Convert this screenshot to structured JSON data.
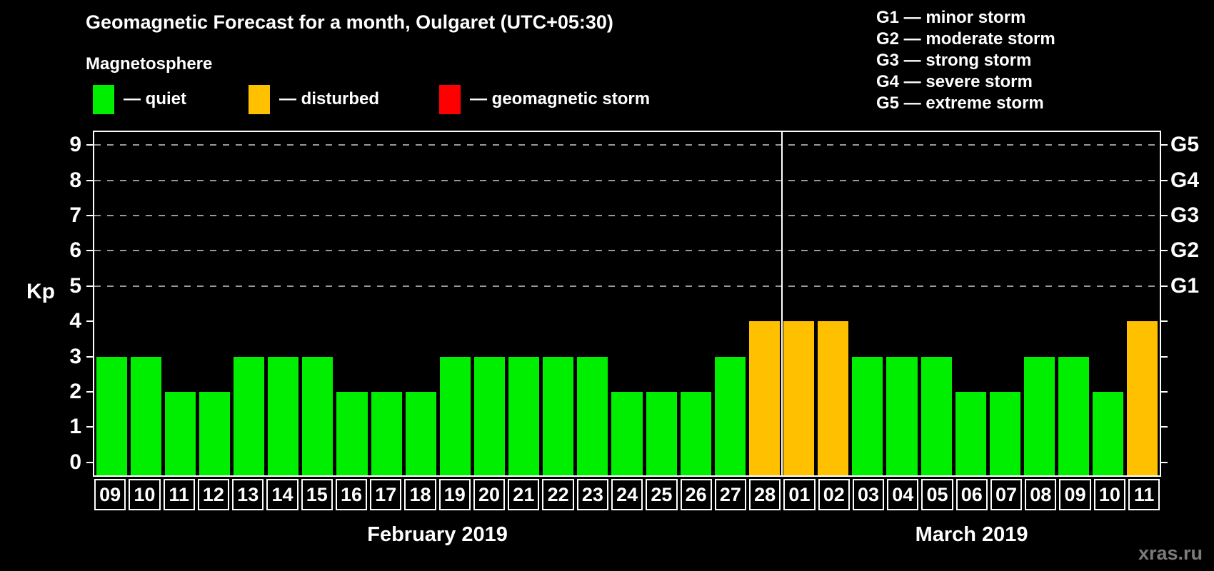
{
  "title": "Geomagnetic Forecast for a month, Oulgaret (UTC+05:30)",
  "subtitle": "Magnetosphere",
  "legend": {
    "items": [
      {
        "name": "quiet",
        "label": "— quiet",
        "color": "#00EE00"
      },
      {
        "name": "disturbed",
        "label": "— disturbed",
        "color": "#FFC000"
      },
      {
        "name": "storm",
        "label": "— geomagnetic storm",
        "color": "#FF0000"
      }
    ]
  },
  "g_legend": [
    "G1 — minor storm",
    "G2 — moderate storm",
    "G3 — strong storm",
    "G4 — severe storm",
    "G5 — extreme storm"
  ],
  "watermark": "xras.ru",
  "chart_data": {
    "type": "bar",
    "ylabel": "Kp",
    "y_ticks": [
      0,
      1,
      2,
      3,
      4,
      5,
      6,
      7,
      8,
      9
    ],
    "y_range": [
      -0.37,
      9.37
    ],
    "gridlines_at": [
      5,
      6,
      7,
      8,
      9
    ],
    "grid_color": "#999999",
    "frame_color": "#ffffff",
    "right_axis_labels": [
      {
        "kp": 5,
        "label": "G1"
      },
      {
        "kp": 6,
        "label": "G2"
      },
      {
        "kp": 7,
        "label": "G3"
      },
      {
        "kp": 8,
        "label": "G4"
      },
      {
        "kp": 9,
        "label": "G5"
      }
    ],
    "status_colors": {
      "quiet": "#00EE00",
      "disturbed": "#FFC000",
      "storm": "#FF0000"
    },
    "months": [
      {
        "label": "February 2019",
        "days": [
          {
            "date": "09",
            "kp": 3,
            "status": "quiet"
          },
          {
            "date": "10",
            "kp": 3,
            "status": "quiet"
          },
          {
            "date": "11",
            "kp": 2,
            "status": "quiet"
          },
          {
            "date": "12",
            "kp": 2,
            "status": "quiet"
          },
          {
            "date": "13",
            "kp": 3,
            "status": "quiet"
          },
          {
            "date": "14",
            "kp": 3,
            "status": "quiet"
          },
          {
            "date": "15",
            "kp": 3,
            "status": "quiet"
          },
          {
            "date": "16",
            "kp": 2,
            "status": "quiet"
          },
          {
            "date": "17",
            "kp": 2,
            "status": "quiet"
          },
          {
            "date": "18",
            "kp": 2,
            "status": "quiet"
          },
          {
            "date": "19",
            "kp": 3,
            "status": "quiet"
          },
          {
            "date": "20",
            "kp": 3,
            "status": "quiet"
          },
          {
            "date": "21",
            "kp": 3,
            "status": "quiet"
          },
          {
            "date": "22",
            "kp": 3,
            "status": "quiet"
          },
          {
            "date": "23",
            "kp": 3,
            "status": "quiet"
          },
          {
            "date": "24",
            "kp": 2,
            "status": "quiet"
          },
          {
            "date": "25",
            "kp": 2,
            "status": "quiet"
          },
          {
            "date": "26",
            "kp": 2,
            "status": "quiet"
          },
          {
            "date": "27",
            "kp": 3,
            "status": "quiet"
          },
          {
            "date": "28",
            "kp": 4,
            "status": "disturbed"
          }
        ]
      },
      {
        "label": "March 2019",
        "days": [
          {
            "date": "01",
            "kp": 4,
            "status": "disturbed"
          },
          {
            "date": "02",
            "kp": 4,
            "status": "disturbed"
          },
          {
            "date": "03",
            "kp": 3,
            "status": "quiet"
          },
          {
            "date": "04",
            "kp": 3,
            "status": "quiet"
          },
          {
            "date": "05",
            "kp": 3,
            "status": "quiet"
          },
          {
            "date": "06",
            "kp": 2,
            "status": "quiet"
          },
          {
            "date": "07",
            "kp": 2,
            "status": "quiet"
          },
          {
            "date": "08",
            "kp": 3,
            "status": "quiet"
          },
          {
            "date": "09",
            "kp": 3,
            "status": "quiet"
          },
          {
            "date": "10",
            "kp": 2,
            "status": "quiet"
          },
          {
            "date": "11",
            "kp": 4,
            "status": "disturbed"
          }
        ]
      }
    ]
  }
}
